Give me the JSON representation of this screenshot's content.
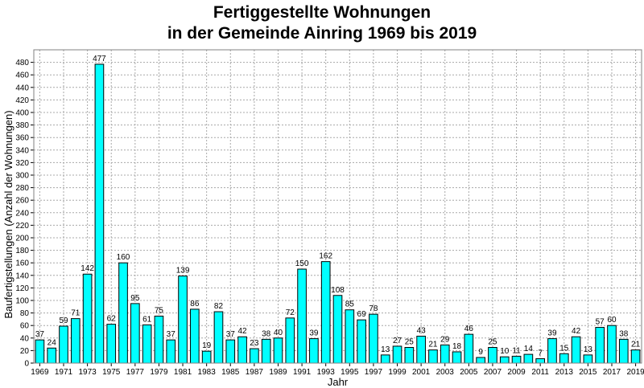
{
  "chart_data": {
    "type": "bar",
    "title_line1": "Fertiggestellte Wohnungen",
    "title_line2": "in der Gemeinde Ainring 1969 bis 2019",
    "xlabel": "Jahr",
    "ylabel": "Baufertigstellungen (Anzahl der Wohnungen)",
    "ylim": [
      0,
      500
    ],
    "ytick_step": 20,
    "grid": true,
    "bar_color": "#00ffff",
    "categories": [
      "1969",
      "1970",
      "1971",
      "1972",
      "1973",
      "1974",
      "1975",
      "1976",
      "1977",
      "1978",
      "1979",
      "1980",
      "1981",
      "1982",
      "1983",
      "1984",
      "1985",
      "1986",
      "1987",
      "1988",
      "1989",
      "1990",
      "1991",
      "1992",
      "1993",
      "1994",
      "1995",
      "1996",
      "1997",
      "1998",
      "1999",
      "2000",
      "2001",
      "2002",
      "2003",
      "2004",
      "2005",
      "2006",
      "2007",
      "2008",
      "2009",
      "2010",
      "2011",
      "2012",
      "2013",
      "2014",
      "2015",
      "2016",
      "2017",
      "2018",
      "2019"
    ],
    "xtick_labels": [
      "1969",
      "1971",
      "1973",
      "1975",
      "1977",
      "1979",
      "1981",
      "1983",
      "1985",
      "1987",
      "1989",
      "1991",
      "1993",
      "1995",
      "1997",
      "1999",
      "2001",
      "2003",
      "2005",
      "2007",
      "2009",
      "2011",
      "2013",
      "2015",
      "2017",
      "2019"
    ],
    "values": [
      37,
      24,
      59,
      71,
      142,
      477,
      62,
      160,
      95,
      61,
      75,
      37,
      139,
      86,
      19,
      82,
      37,
      42,
      23,
      38,
      40,
      72,
      150,
      39,
      162,
      108,
      85,
      69,
      78,
      13,
      27,
      25,
      43,
      21,
      29,
      18,
      46,
      9,
      25,
      10,
      11,
      14,
      7,
      39,
      15,
      42,
      13,
      57,
      60,
      38,
      21
    ]
  }
}
